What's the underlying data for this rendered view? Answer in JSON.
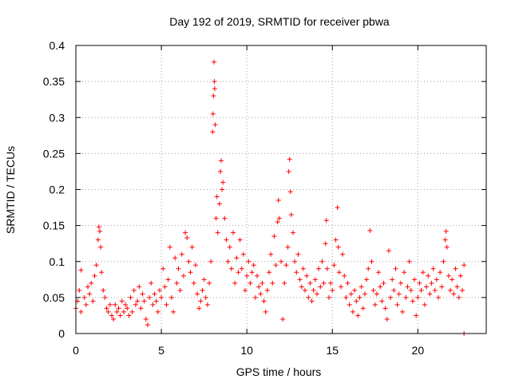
{
  "chart_data": {
    "type": "scatter",
    "title": "Day 192 of 2019, SRMTID for receiver pbwa",
    "xlabel": "GPS time / hours",
    "ylabel": "SRMTID / TECUs",
    "xlim": [
      0,
      24
    ],
    "ylim": [
      0,
      0.4
    ],
    "x_ticks": [
      0,
      5,
      10,
      15,
      20
    ],
    "x_tick_labels": [
      "0",
      "5",
      "10",
      "15",
      "20"
    ],
    "y_ticks": [
      0,
      0.05,
      0.1,
      0.15,
      0.2,
      0.25,
      0.3,
      0.35,
      0.4
    ],
    "y_tick_labels": [
      "0",
      "0.05",
      "0.1",
      "0.15",
      "0.2",
      "0.25",
      "0.3",
      "0.35",
      "0.4"
    ],
    "grid": true,
    "marker": "+",
    "color": "#ff0000",
    "series": [
      {
        "name": "SRMTID",
        "points": [
          [
            0.0,
            0.035
          ],
          [
            0.1,
            0.045
          ],
          [
            0.2,
            0.06
          ],
          [
            0.3,
            0.088
          ],
          [
            0.3,
            0.03
          ],
          [
            0.5,
            0.05
          ],
          [
            0.6,
            0.04
          ],
          [
            0.7,
            0.065
          ],
          [
            0.8,
            0.055
          ],
          [
            0.9,
            0.07
          ],
          [
            1.0,
            0.045
          ],
          [
            1.1,
            0.08
          ],
          [
            1.2,
            0.095
          ],
          [
            1.3,
            0.13
          ],
          [
            1.35,
            0.148
          ],
          [
            1.4,
            0.142
          ],
          [
            1.45,
            0.12
          ],
          [
            1.5,
            0.085
          ],
          [
            1.6,
            0.06
          ],
          [
            1.7,
            0.05
          ],
          [
            1.8,
            0.035
          ],
          [
            1.9,
            0.03
          ],
          [
            2.0,
            0.04
          ],
          [
            2.1,
            0.025
          ],
          [
            2.2,
            0.02
          ],
          [
            2.3,
            0.04
          ],
          [
            2.4,
            0.03
          ],
          [
            2.5,
            0.035
          ],
          [
            2.6,
            0.025
          ],
          [
            2.7,
            0.045
          ],
          [
            2.8,
            0.03
          ],
          [
            2.9,
            0.04
          ],
          [
            3.0,
            0.035
          ],
          [
            3.1,
            0.025
          ],
          [
            3.2,
            0.05
          ],
          [
            3.3,
            0.03
          ],
          [
            3.4,
            0.06
          ],
          [
            3.5,
            0.04
          ],
          [
            3.6,
            0.045
          ],
          [
            3.7,
            0.065
          ],
          [
            3.8,
            0.035
          ],
          [
            3.9,
            0.055
          ],
          [
            4.0,
            0.045
          ],
          [
            4.1,
            0.02
          ],
          [
            4.2,
            0.012
          ],
          [
            4.3,
            0.05
          ],
          [
            4.4,
            0.07
          ],
          [
            4.5,
            0.04
          ],
          [
            4.6,
            0.055
          ],
          [
            4.7,
            0.045
          ],
          [
            4.8,
            0.03
          ],
          [
            4.9,
            0.06
          ],
          [
            5.0,
            0.05
          ],
          [
            5.1,
            0.09
          ],
          [
            5.2,
            0.065
          ],
          [
            5.3,
            0.04
          ],
          [
            5.4,
            0.075
          ],
          [
            5.5,
            0.12
          ],
          [
            5.6,
            0.05
          ],
          [
            5.7,
            0.03
          ],
          [
            5.8,
            0.105
          ],
          [
            5.9,
            0.07
          ],
          [
            6.0,
            0.09
          ],
          [
            6.1,
            0.06
          ],
          [
            6.2,
            0.11
          ],
          [
            6.3,
            0.08
          ],
          [
            6.4,
            0.14
          ],
          [
            6.5,
            0.133
          ],
          [
            6.6,
            0.1
          ],
          [
            6.7,
            0.085
          ],
          [
            6.8,
            0.12
          ],
          [
            6.9,
            0.07
          ],
          [
            7.0,
            0.095
          ],
          [
            7.1,
            0.055
          ],
          [
            7.2,
            0.035
          ],
          [
            7.3,
            0.045
          ],
          [
            7.4,
            0.06
          ],
          [
            7.5,
            0.075
          ],
          [
            7.6,
            0.05
          ],
          [
            7.7,
            0.04
          ],
          [
            7.8,
            0.07
          ],
          [
            7.9,
            0.1
          ],
          [
            8.0,
            0.28
          ],
          [
            8.02,
            0.305
          ],
          [
            8.05,
            0.33
          ],
          [
            8.08,
            0.377
          ],
          [
            8.1,
            0.35
          ],
          [
            8.12,
            0.34
          ],
          [
            8.15,
            0.29
          ],
          [
            8.2,
            0.16
          ],
          [
            8.25,
            0.19
          ],
          [
            8.3,
            0.14
          ],
          [
            8.4,
            0.18
          ],
          [
            8.45,
            0.225
          ],
          [
            8.5,
            0.24
          ],
          [
            8.55,
            0.2
          ],
          [
            8.6,
            0.21
          ],
          [
            8.7,
            0.16
          ],
          [
            8.8,
            0.13
          ],
          [
            8.9,
            0.1
          ],
          [
            9.0,
            0.12
          ],
          [
            9.1,
            0.09
          ],
          [
            9.2,
            0.14
          ],
          [
            9.3,
            0.07
          ],
          [
            9.4,
            0.105
          ],
          [
            9.5,
            0.085
          ],
          [
            9.6,
            0.13
          ],
          [
            9.7,
            0.09
          ],
          [
            9.8,
            0.11
          ],
          [
            9.9,
            0.06
          ],
          [
            10.0,
            0.08
          ],
          [
            10.1,
            0.1
          ],
          [
            10.2,
            0.07
          ],
          [
            10.3,
            0.085
          ],
          [
            10.4,
            0.095
          ],
          [
            10.5,
            0.05
          ],
          [
            10.6,
            0.08
          ],
          [
            10.7,
            0.065
          ],
          [
            10.8,
            0.055
          ],
          [
            10.9,
            0.07
          ],
          [
            11.0,
            0.045
          ],
          [
            11.1,
            0.03
          ],
          [
            11.2,
            0.06
          ],
          [
            11.3,
            0.085
          ],
          [
            11.4,
            0.11
          ],
          [
            11.5,
            0.07
          ],
          [
            11.6,
            0.135
          ],
          [
            11.7,
            0.095
          ],
          [
            11.8,
            0.155
          ],
          [
            11.85,
            0.185
          ],
          [
            11.9,
            0.16
          ],
          [
            12.0,
            0.1
          ],
          [
            12.1,
            0.02
          ],
          [
            12.2,
            0.07
          ],
          [
            12.3,
            0.095
          ],
          [
            12.4,
            0.12
          ],
          [
            12.45,
            0.225
          ],
          [
            12.5,
            0.242
          ],
          [
            12.55,
            0.197
          ],
          [
            12.6,
            0.165
          ],
          [
            12.7,
            0.14
          ],
          [
            12.8,
            0.1
          ],
          [
            12.9,
            0.085
          ],
          [
            13.0,
            0.11
          ],
          [
            13.1,
            0.075
          ],
          [
            13.2,
            0.065
          ],
          [
            13.3,
            0.09
          ],
          [
            13.4,
            0.06
          ],
          [
            13.5,
            0.08
          ],
          [
            13.6,
            0.05
          ],
          [
            13.7,
            0.07
          ],
          [
            13.8,
            0.045
          ],
          [
            13.9,
            0.06
          ],
          [
            14.0,
            0.075
          ],
          [
            14.1,
            0.055
          ],
          [
            14.2,
            0.09
          ],
          [
            14.3,
            0.065
          ],
          [
            14.4,
            0.1
          ],
          [
            14.5,
            0.07
          ],
          [
            14.6,
            0.125
          ],
          [
            14.65,
            0.157
          ],
          [
            14.7,
            0.09
          ],
          [
            14.8,
            0.05
          ],
          [
            14.9,
            0.07
          ],
          [
            15.0,
            0.06
          ],
          [
            15.1,
            0.095
          ],
          [
            15.2,
            0.13
          ],
          [
            15.3,
            0.175
          ],
          [
            15.35,
            0.12
          ],
          [
            15.4,
            0.085
          ],
          [
            15.5,
            0.065
          ],
          [
            15.6,
            0.11
          ],
          [
            15.7,
            0.08
          ],
          [
            15.8,
            0.05
          ],
          [
            15.9,
            0.07
          ],
          [
            16.0,
            0.04
          ],
          [
            16.1,
            0.055
          ],
          [
            16.2,
            0.03
          ],
          [
            16.3,
            0.06
          ],
          [
            16.4,
            0.045
          ],
          [
            16.5,
            0.025
          ],
          [
            16.6,
            0.05
          ],
          [
            16.7,
            0.065
          ],
          [
            16.8,
            0.035
          ],
          [
            16.9,
            0.055
          ],
          [
            17.0,
            0.075
          ],
          [
            17.1,
            0.09
          ],
          [
            17.2,
            0.143
          ],
          [
            17.3,
            0.1
          ],
          [
            17.4,
            0.06
          ],
          [
            17.5,
            0.04
          ],
          [
            17.6,
            0.055
          ],
          [
            17.7,
            0.085
          ],
          [
            17.8,
            0.065
          ],
          [
            17.9,
            0.045
          ],
          [
            18.0,
            0.07
          ],
          [
            18.1,
            0.035
          ],
          [
            18.2,
            0.02
          ],
          [
            18.3,
            0.115
          ],
          [
            18.4,
            0.05
          ],
          [
            18.5,
            0.075
          ],
          [
            18.6,
            0.06
          ],
          [
            18.7,
            0.09
          ],
          [
            18.8,
            0.04
          ],
          [
            18.9,
            0.055
          ],
          [
            19.0,
            0.07
          ],
          [
            19.1,
            0.03
          ],
          [
            19.2,
            0.085
          ],
          [
            19.3,
            0.05
          ],
          [
            19.4,
            0.065
          ],
          [
            19.5,
            0.1
          ],
          [
            19.6,
            0.06
          ],
          [
            19.7,
            0.045
          ],
          [
            19.8,
            0.075
          ],
          [
            19.9,
            0.025
          ],
          [
            20.0,
            0.05
          ],
          [
            20.1,
            0.07
          ],
          [
            20.2,
            0.06
          ],
          [
            20.3,
            0.085
          ],
          [
            20.4,
            0.04
          ],
          [
            20.5,
            0.065
          ],
          [
            20.6,
            0.08
          ],
          [
            20.7,
            0.055
          ],
          [
            20.8,
            0.07
          ],
          [
            20.9,
            0.09
          ],
          [
            21.0,
            0.06
          ],
          [
            21.1,
            0.075
          ],
          [
            21.2,
            0.05
          ],
          [
            21.3,
            0.085
          ],
          [
            21.4,
            0.065
          ],
          [
            21.5,
            0.1
          ],
          [
            21.6,
            0.13
          ],
          [
            21.65,
            0.142
          ],
          [
            21.7,
            0.12
          ],
          [
            21.8,
            0.08
          ],
          [
            21.9,
            0.06
          ],
          [
            22.0,
            0.075
          ],
          [
            22.1,
            0.055
          ],
          [
            22.2,
            0.09
          ],
          [
            22.3,
            0.065
          ],
          [
            22.4,
            0.05
          ],
          [
            22.5,
            0.08
          ],
          [
            22.6,
            0.06
          ],
          [
            22.7,
            0.095
          ],
          [
            22.7,
            0.0
          ]
        ]
      }
    ]
  }
}
